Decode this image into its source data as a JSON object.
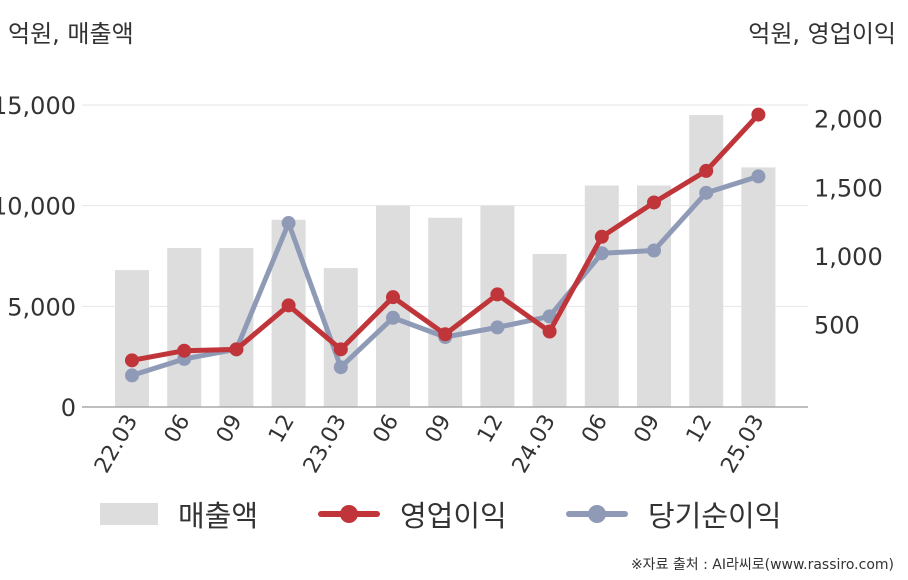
{
  "chart_data": {
    "type": "bar",
    "categories": [
      "22.03",
      "06",
      "09",
      "12",
      "23.03",
      "06",
      "09",
      "12",
      "24.03",
      "06",
      "09",
      "12",
      "25.03"
    ],
    "left_axis": {
      "title": "억원, 매출액",
      "ylim": [
        0,
        15000
      ],
      "ticks": [
        0,
        5000,
        10000,
        15000
      ],
      "tick_labels": [
        "0",
        "5,000",
        "10,000",
        "15,000"
      ]
    },
    "right_axis": {
      "title": "억원, 영업이익",
      "ylim": [
        -100,
        2100
      ],
      "ticks": [
        500,
        1000,
        1500,
        2000
      ],
      "tick_labels": [
        "500",
        "1,000",
        "1,500",
        "2,000"
      ]
    },
    "series": [
      {
        "name": "매출액",
        "type": "bar",
        "axis": "left",
        "color": "#dddddd",
        "values": [
          6800,
          7900,
          7900,
          9300,
          6900,
          10000,
          9400,
          10000,
          7600,
          11000,
          11000,
          14500,
          11900
        ]
      },
      {
        "name": "영업이익",
        "type": "line",
        "axis": "right",
        "color": "#c0353a",
        "values": [
          240,
          310,
          320,
          640,
          320,
          700,
          430,
          720,
          450,
          1140,
          1390,
          1620,
          2030
        ]
      },
      {
        "name": "당기순이익",
        "type": "line",
        "axis": "right",
        "color": "#8f9bb6",
        "values": [
          130,
          250,
          320,
          1240,
          190,
          550,
          410,
          480,
          560,
          1020,
          1040,
          1460,
          1580
        ]
      }
    ],
    "grid": true,
    "legend_position": "bottom"
  },
  "source": "※자료 출처 : AI라씨로(www.rassiro.com)"
}
